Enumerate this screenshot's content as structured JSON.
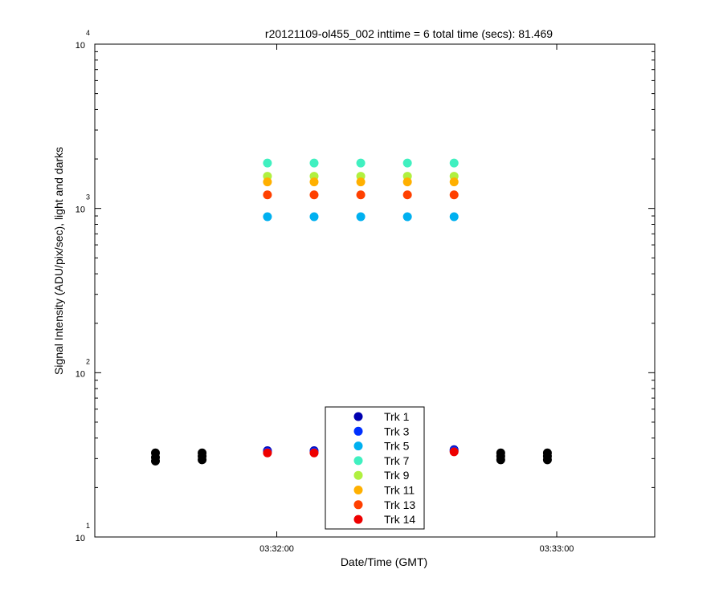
{
  "chart_data": {
    "type": "scatter",
    "title": "r20121109-ol455_002 inttime = 6 total time (secs): 81.469",
    "xlabel": "Date/Time (GMT)",
    "ylabel": "Signal Intensity (ADU/pix/sec), light and darks",
    "yscale": "log",
    "ylim": [
      10,
      10000
    ],
    "xlim": [
      "03:31:21",
      "03:33:21"
    ],
    "x_ticks": [
      "03:32:00",
      "03:33:00"
    ],
    "y_ticks": [
      {
        "base": "10",
        "exp": "1",
        "value": 10
      },
      {
        "base": "10",
        "exp": "2",
        "value": 100
      },
      {
        "base": "10",
        "exp": "3",
        "value": 1000
      },
      {
        "base": "10",
        "exp": "4",
        "value": 10000
      }
    ],
    "grid": false,
    "legend_position": "bottom-center",
    "series": [
      {
        "name": "Trk 1",
        "color": "#0000b0",
        "x": [
          "03:31:58",
          "03:32:08",
          "03:32:38"
        ],
        "y": [
          33.5,
          33.5,
          34
        ]
      },
      {
        "name": "Trk 3",
        "color": "#0030ff",
        "x": [
          "03:31:58",
          "03:32:08",
          "03:32:38"
        ],
        "y": [
          33,
          33,
          33.5
        ]
      },
      {
        "name": "Trk 5",
        "color": "#00b0f0",
        "x": [
          "03:31:58",
          "03:32:08",
          "03:32:18",
          "03:32:28",
          "03:32:38"
        ],
        "y": [
          890,
          890,
          890,
          890,
          890
        ]
      },
      {
        "name": "Trk 7",
        "color": "#40f0c0",
        "x": [
          "03:31:58",
          "03:32:08",
          "03:32:18",
          "03:32:28",
          "03:32:38"
        ],
        "y": [
          1890,
          1890,
          1890,
          1890,
          1890
        ]
      },
      {
        "name": "Trk 9",
        "color": "#b0f040",
        "x": [
          "03:31:58",
          "03:32:08",
          "03:32:18",
          "03:32:28",
          "03:32:38"
        ],
        "y": [
          1570,
          1570,
          1570,
          1570,
          1570
        ]
      },
      {
        "name": "Trk 11",
        "color": "#ffb000",
        "x": [
          "03:31:58",
          "03:32:08",
          "03:32:18",
          "03:32:28",
          "03:32:38"
        ],
        "y": [
          1450,
          1450,
          1450,
          1450,
          1450
        ]
      },
      {
        "name": "Trk 13",
        "color": "#ff4000",
        "x": [
          "03:31:58",
          "03:32:08",
          "03:32:18",
          "03:32:28",
          "03:32:38"
        ],
        "y": [
          1210,
          1210,
          1210,
          1210,
          1210
        ]
      },
      {
        "name": "Trk 14",
        "color": "#ee0000",
        "x": [
          "03:31:58",
          "03:32:08",
          "03:32:38"
        ],
        "y": [
          32.5,
          32.5,
          33
        ]
      }
    ],
    "darks": {
      "color": "#000000",
      "x": [
        "03:31:34",
        "03:31:34",
        "03:31:34",
        "03:31:44",
        "03:31:44",
        "03:31:44",
        "03:32:48",
        "03:32:48",
        "03:32:48",
        "03:32:58",
        "03:32:58",
        "03:32:58"
      ],
      "y": [
        32.5,
        30.5,
        29,
        32.5,
        31,
        29.5,
        32.5,
        31,
        29.5,
        32.5,
        31,
        29.5
      ]
    }
  }
}
